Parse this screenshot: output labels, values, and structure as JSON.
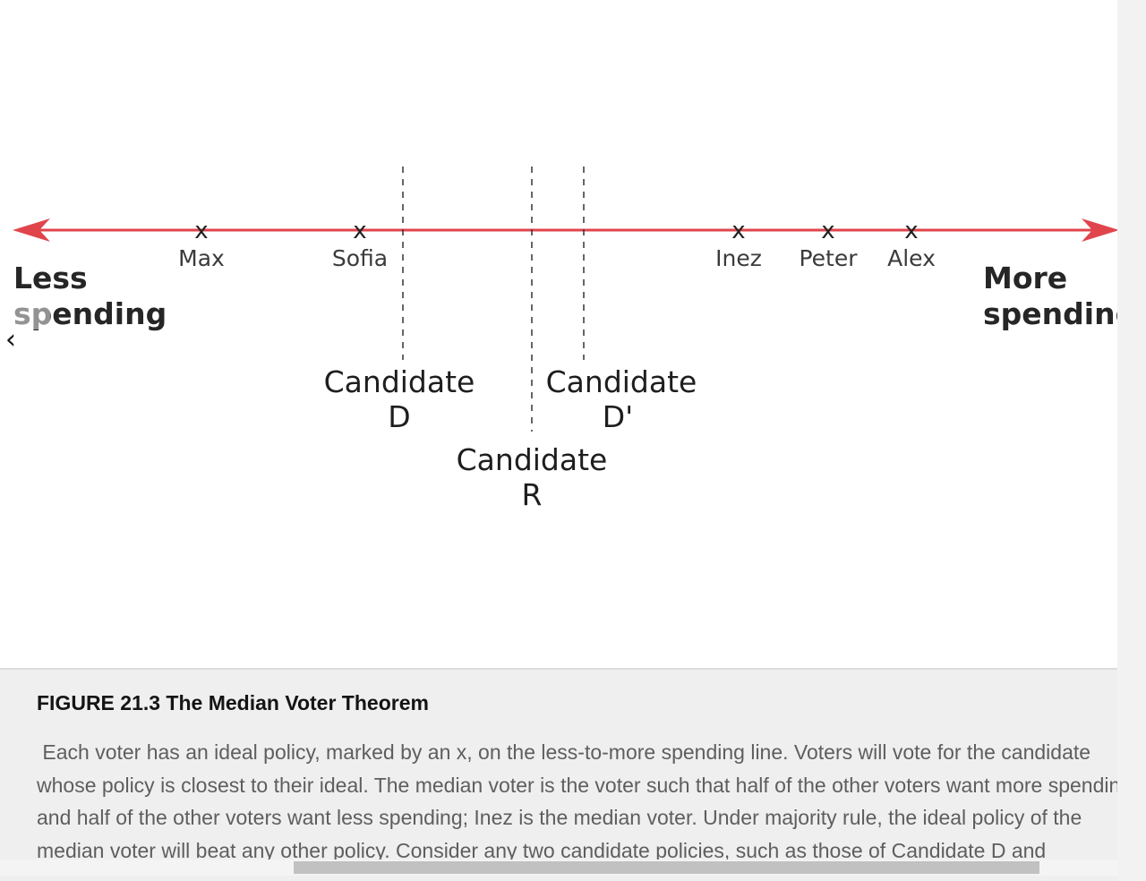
{
  "diagram": {
    "axis": {
      "color": "#e0454c",
      "left_label_lines": [
        "Less",
        "spending"
      ],
      "right_label_lines": [
        "More",
        "spending"
      ]
    },
    "voters": [
      {
        "name": "Max",
        "mark": "x"
      },
      {
        "name": "Sofia",
        "mark": "x"
      },
      {
        "name": "Inez",
        "mark": "x"
      },
      {
        "name": "Peter",
        "mark": "x"
      },
      {
        "name": "Alex",
        "mark": "x"
      }
    ],
    "candidates": [
      {
        "id": "D",
        "label_lines": [
          "Candidate",
          "D"
        ]
      },
      {
        "id": "R",
        "label_lines": [
          "Candidate",
          "R"
        ]
      },
      {
        "id": "D_prime",
        "label_lines": [
          "Candidate",
          "D'"
        ]
      }
    ]
  },
  "navigation": {
    "prev_icon": "chevron-left-icon",
    "prev_glyph": "‹"
  },
  "caption": {
    "title": "FIGURE 21.3 The Median Voter Theorem",
    "text": " Each voter has an ideal policy, marked by an x, on the less-to-more spending line. Voters will vote for the candidate whose policy is closest to their ideal. The median voter is the voter such that half of the other voters want more spending and half of the other voters want less spending; Inez is the median voter. Under majority rule, the ideal policy of the median voter will beat any other policy. Consider any two candidate policies, such as those of Candidate D and"
  },
  "colors": {
    "axis_red": "#e0454c",
    "caption_background": "#efefef",
    "caption_text": "#5e5e5e"
  }
}
